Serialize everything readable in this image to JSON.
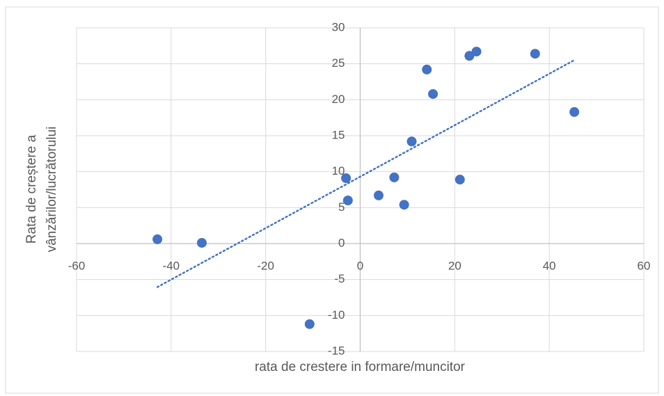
{
  "chart_data": {
    "type": "scatter",
    "xlabel": "rata de crestere in formare/muncitor",
    "ylabel": [
      "Rata de creștere a",
      "vânzărilor/lucrătorului"
    ],
    "series": [
      {
        "color": "#4472c4",
        "x": [
          -42.9,
          -33.5,
          -10.7,
          -3.0,
          -2.6,
          3.9,
          7.2,
          9.3,
          10.9,
          14.1,
          15.4,
          21.1,
          23.1,
          24.6,
          37.0,
          45.3
        ],
        "values": [
          0.6,
          0.1,
          -11.2,
          9.1,
          6.0,
          6.7,
          9.2,
          5.4,
          14.2,
          24.2,
          20.8,
          8.9,
          26.1,
          26.7,
          26.4,
          18.3
        ]
      }
    ],
    "trendline": true,
    "trendline_color": "#4472c4",
    "xlim": [
      -60,
      60
    ],
    "xticks": [
      -60,
      -40,
      -20,
      0,
      20,
      40,
      60
    ],
    "ylim": [
      -15,
      30
    ],
    "yticks": [
      -15,
      -10,
      -5,
      0,
      5,
      10,
      15,
      20,
      25,
      30
    ],
    "grid": true
  }
}
